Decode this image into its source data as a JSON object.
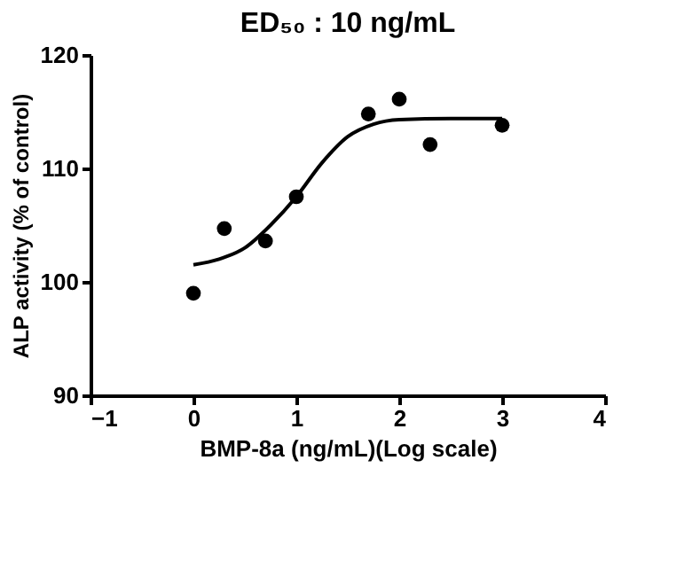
{
  "chart_data": {
    "type": "scatter",
    "title": "ED₅₀ : 10 ng/mL",
    "xlabel": "BMP-8a (ng/mL)(Log scale)",
    "ylabel": "ALP activity (% of control)",
    "xlim": [
      -1,
      4
    ],
    "xticks": [
      -1,
      0,
      1,
      2,
      3,
      4
    ],
    "ylim": [
      90,
      120
    ],
    "yticks": [
      90,
      100,
      110,
      120
    ],
    "grid": false,
    "series": [
      {
        "type": "scatter",
        "color": "#000000",
        "marker": "circle",
        "x": [
          0,
          0.3,
          0.7,
          1,
          1.7,
          2,
          2.3,
          3
        ],
        "values": [
          99.0,
          104.7,
          103.6,
          107.5,
          114.8,
          116.1,
          112.1,
          113.8
        ]
      },
      {
        "type": "line",
        "color": "#000000",
        "marker": "none",
        "line_style": "solid",
        "x": [
          0,
          0.25,
          0.5,
          0.75,
          1,
          1.25,
          1.5,
          1.75,
          2,
          2.5,
          3
        ],
        "values": [
          101.5,
          102,
          103,
          105,
          107.5,
          110.5,
          112.8,
          113.9,
          114.3,
          114.4,
          114.4
        ]
      }
    ]
  }
}
